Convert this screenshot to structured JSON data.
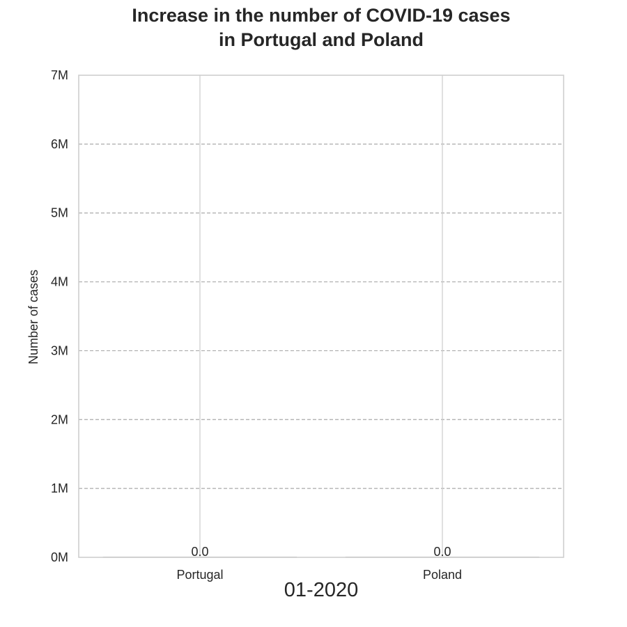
{
  "chart_data": {
    "type": "bar",
    "title_lines": [
      "Increase in the number of COVID-19 cases",
      "in Portugal and Poland"
    ],
    "xlabel": "",
    "ylabel": "Number of cases",
    "categories": [
      "Portugal",
      "Poland"
    ],
    "values": [
      0,
      0
    ],
    "value_labels": [
      "0.0",
      "0.0"
    ],
    "ylim": [
      0,
      7000000
    ],
    "y_ticks": [
      0,
      1000000,
      2000000,
      3000000,
      4000000,
      5000000,
      6000000,
      7000000
    ],
    "y_tick_labels": [
      "0M",
      "1M",
      "2M",
      "3M",
      "4M",
      "5M",
      "6M",
      "7M"
    ],
    "grid": true,
    "period_label": "01-2020",
    "colors": {
      "grid": "#aaaaaa",
      "spine": "#cccccc",
      "bar": "#bbbbbb",
      "text": "#262626"
    }
  }
}
